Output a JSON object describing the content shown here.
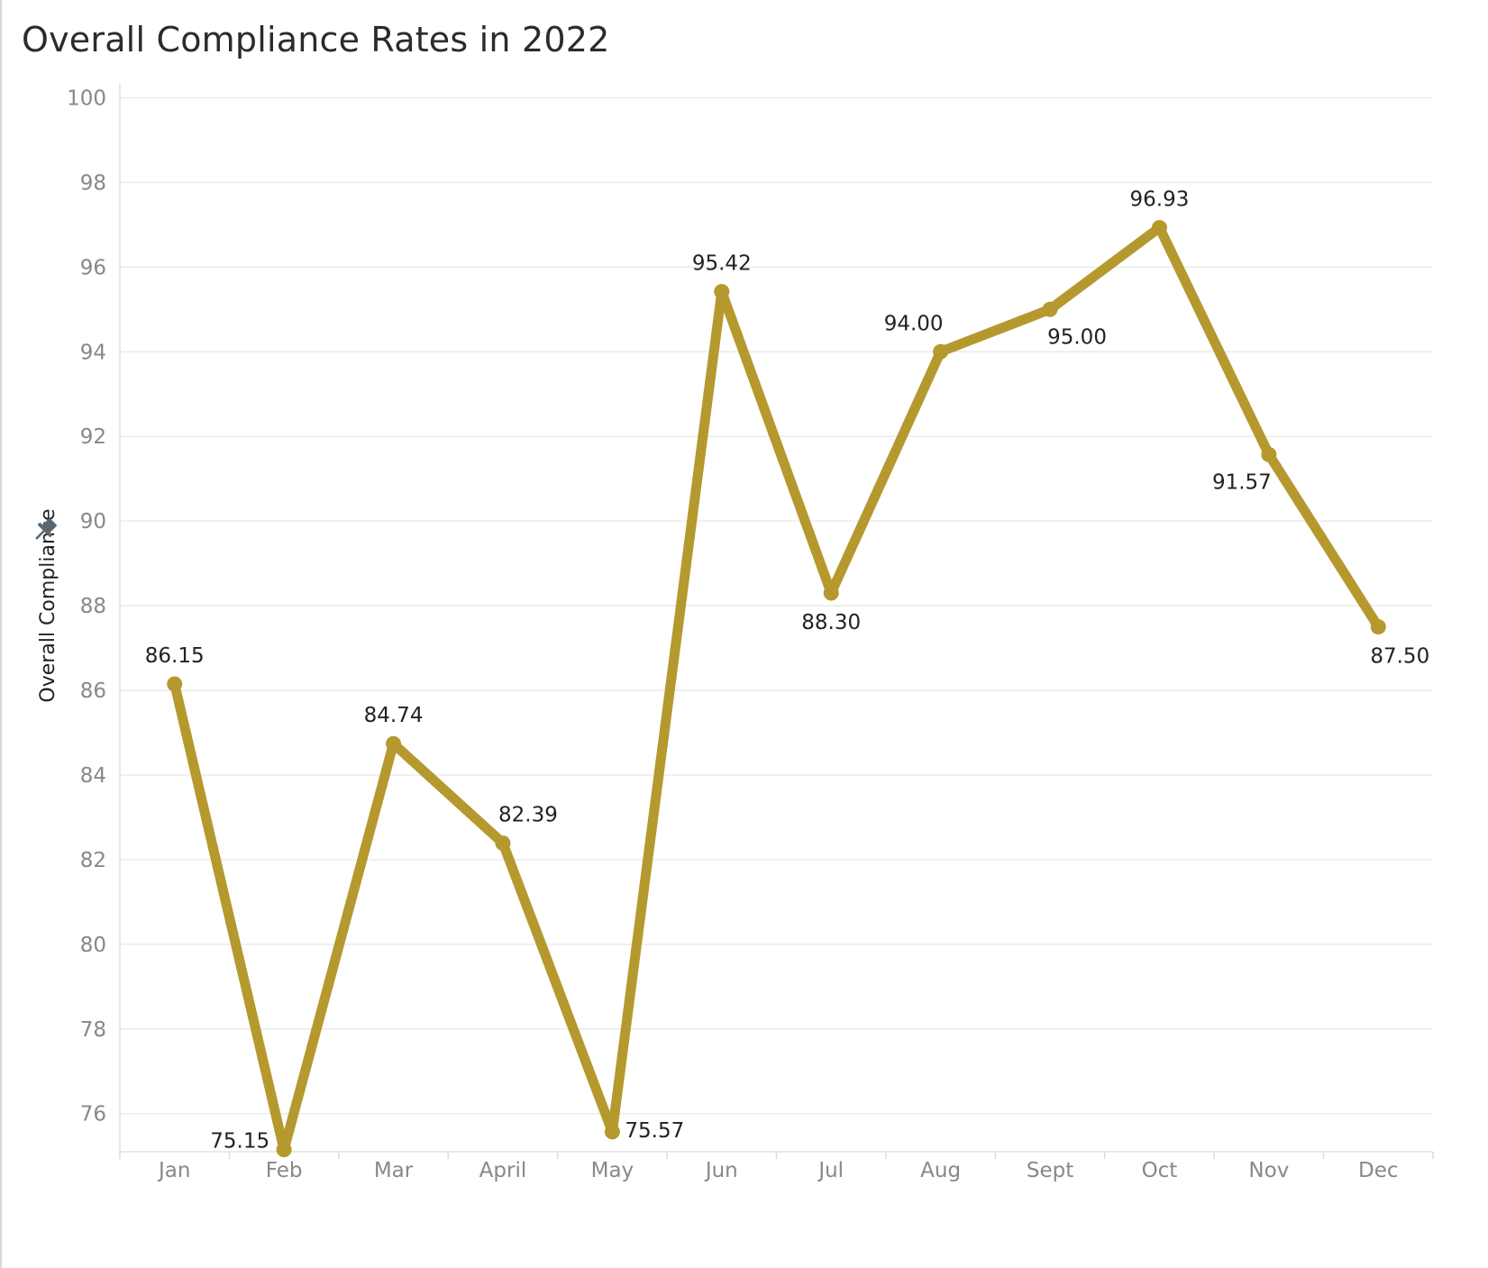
{
  "chart_data": {
    "type": "line",
    "title": "Overall Compliance Rates in 2022",
    "xlabel": "",
    "ylabel": "Overall Compliance",
    "categories": [
      "Jan",
      "Feb",
      "Mar",
      "April",
      "May",
      "Jun",
      "Jul",
      "Aug",
      "Sept",
      "Oct",
      "Nov",
      "Dec"
    ],
    "series": [
      {
        "values": [
          86.15,
          75.15,
          84.74,
          82.39,
          75.57,
          95.42,
          88.3,
          94.0,
          95.0,
          96.93,
          91.57,
          87.5
        ],
        "labels": [
          "86.15",
          "75.15",
          "84.74",
          "82.39",
          "75.57",
          "95.42",
          "88.30",
          "94.00",
          "95.00",
          "96.93",
          "91.57",
          "87.50"
        ],
        "color": "#b5992e"
      }
    ],
    "ylim": [
      75,
      100
    ],
    "yticks": [
      76,
      78,
      80,
      82,
      84,
      86,
      88,
      90,
      92,
      94,
      96,
      98,
      100
    ],
    "grid": true,
    "legend": "none"
  },
  "colors": {
    "line": "#b5992e",
    "grid": "#ebebeb",
    "tick_text": "#888888",
    "label_text": "#222222",
    "pin_icon": "#5b6670"
  },
  "icons": {
    "pin": "pin-icon"
  }
}
